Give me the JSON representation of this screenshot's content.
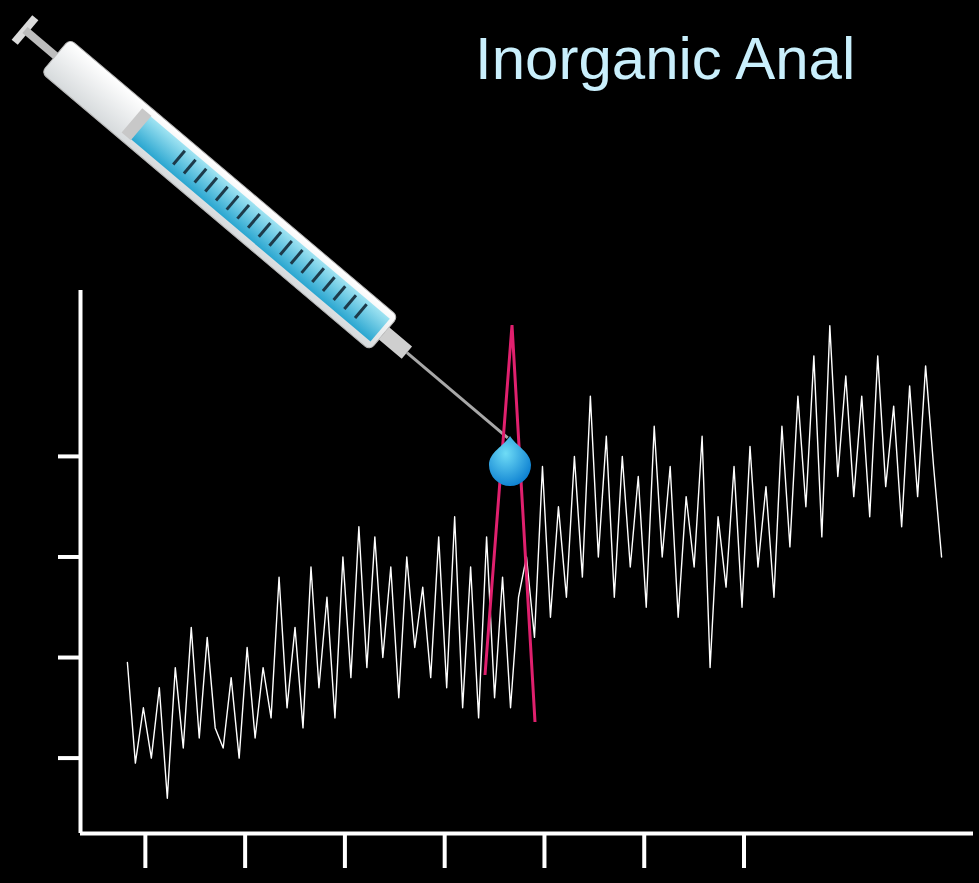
{
  "chart_data": {
    "type": "line",
    "title": "Inorganic Anal",
    "x": [
      0.82,
      0.9,
      0.98,
      1.06,
      1.14,
      1.22,
      1.3,
      1.38,
      1.46,
      1.54,
      1.62,
      1.7,
      1.78,
      1.86,
      1.94,
      2.02,
      2.1,
      2.18,
      2.26,
      2.34,
      2.42,
      2.5,
      2.58,
      2.66,
      2.74,
      2.82,
      2.9,
      2.98,
      3.06,
      3.14,
      3.22,
      3.3,
      3.38,
      3.46,
      3.54,
      3.62,
      3.7,
      3.78,
      3.86,
      3.94,
      4.02,
      4.1,
      4.18,
      4.26,
      4.34,
      4.42,
      4.5,
      4.58,
      4.66,
      4.74,
      4.82,
      4.9,
      4.98,
      5.06,
      5.14,
      5.22,
      5.3,
      5.38,
      5.46,
      5.54,
      5.62,
      5.7,
      5.78,
      5.86,
      5.94,
      6.02,
      6.1,
      6.18,
      6.26,
      6.34,
      6.42,
      6.5,
      6.58,
      6.66,
      6.74,
      6.82,
      6.9,
      6.98,
      7.06,
      7.14,
      7.22,
      7.3,
      7.38,
      7.46,
      7.54,
      7.62,
      7.7,
      7.78,
      7.86,
      7.94,
      8.02,
      8.1,
      8.18,
      8.26,
      8.34,
      8.42,
      8.5,
      8.58,
      8.66,
      8.74,
      8.82,
      8.9,
      8.98
    ],
    "values": [
      1.95,
      0.95,
      1.5,
      1.0,
      1.7,
      0.6,
      1.9,
      1.1,
      2.3,
      1.2,
      2.2,
      1.3,
      1.1,
      1.8,
      1.0,
      2.1,
      1.2,
      1.9,
      1.4,
      2.8,
      1.5,
      2.3,
      1.3,
      2.9,
      1.7,
      2.6,
      1.4,
      3.0,
      1.8,
      3.3,
      1.9,
      3.2,
      2.0,
      2.9,
      1.6,
      3.0,
      2.1,
      2.7,
      1.8,
      3.2,
      1.7,
      3.4,
      1.5,
      2.9,
      1.4,
      3.2,
      1.6,
      2.8,
      1.5,
      2.6,
      3.0,
      2.2,
      3.9,
      2.4,
      3.5,
      2.6,
      4.0,
      2.8,
      4.6,
      3.0,
      4.2,
      2.6,
      4.0,
      2.9,
      3.8,
      2.5,
      4.3,
      3.0,
      3.9,
      2.4,
      3.6,
      2.9,
      4.2,
      1.9,
      3.4,
      2.7,
      3.9,
      2.5,
      4.1,
      2.9,
      3.7,
      2.6,
      4.3,
      3.1,
      4.6,
      3.5,
      5.0,
      3.2,
      5.3,
      3.8,
      4.8,
      3.6,
      4.6,
      3.4,
      5.0,
      3.7,
      4.5,
      3.3,
      4.7,
      3.6,
      4.9,
      3.9,
      3.0
    ],
    "color": "#ffffff",
    "xlim": [
      0.35,
      9.3
    ],
    "ylim": [
      0.25,
      5.65
    ],
    "xticks": [
      1,
      2,
      3,
      4,
      5,
      6,
      7
    ],
    "yticks": [
      1,
      2,
      3,
      4
    ],
    "tick_labels": false,
    "grid": false
  }
}
